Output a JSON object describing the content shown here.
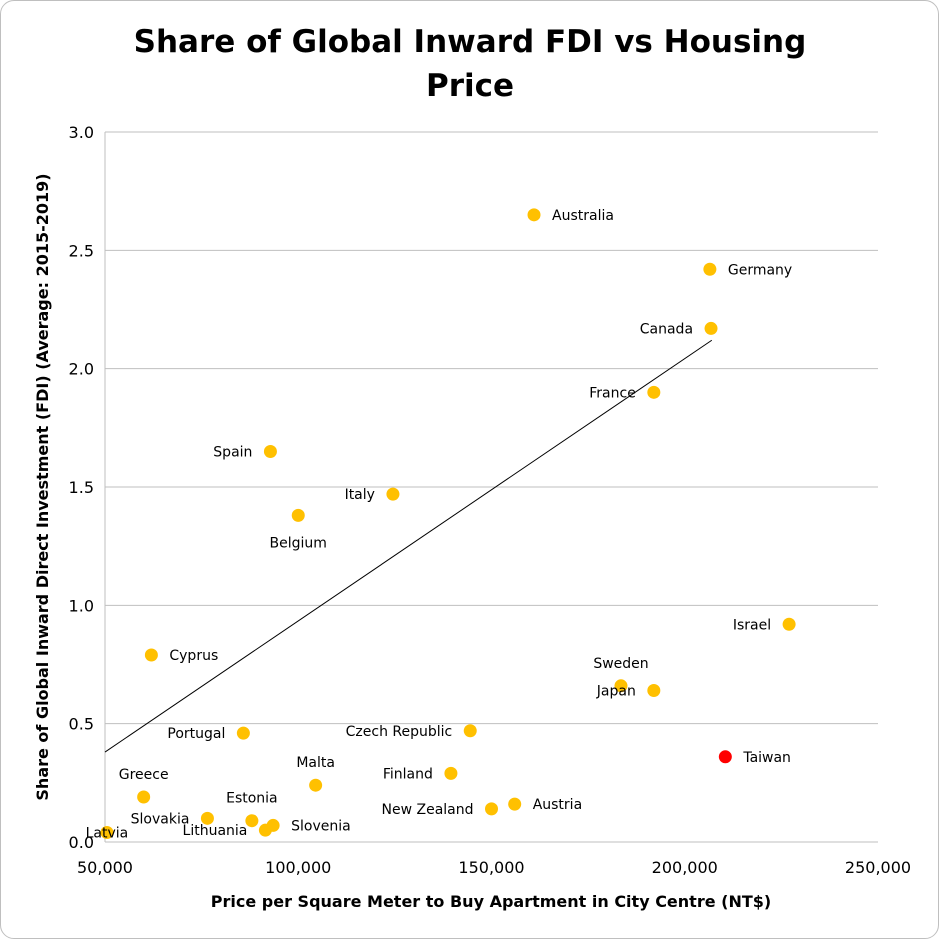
{
  "chart_data": {
    "type": "scatter",
    "title": "Share of Global Inward FDI vs Housing Price",
    "xlabel": "Price per Square Meter to Buy Apartment in City Centre (NT$)",
    "ylabel": "Share of Global Inward Direct Investment (FDI) (Average: 2015-2019)",
    "xlim": [
      50000,
      250000
    ],
    "ylim": [
      0,
      3
    ],
    "x_ticks": [
      {
        "value": 50000,
        "label": "50,000"
      },
      {
        "value": 100000,
        "label": "100,000"
      },
      {
        "value": 150000,
        "label": "150,000"
      },
      {
        "value": 200000,
        "label": "200,000"
      },
      {
        "value": 250000,
        "label": "250,000"
      }
    ],
    "y_ticks": [
      {
        "value": 0,
        "label": "0.0"
      },
      {
        "value": 0.5,
        "label": "0.5"
      },
      {
        "value": 1.0,
        "label": "1.0"
      },
      {
        "value": 1.5,
        "label": "1.5"
      },
      {
        "value": 2.0,
        "label": "2.0"
      },
      {
        "value": 2.5,
        "label": "2.5"
      },
      {
        "value": 3.0,
        "label": "3.0"
      }
    ],
    "grid": "horizontal",
    "trendline": {
      "x": [
        50000,
        207000
      ],
      "y": [
        0.38,
        2.12
      ]
    },
    "colors": {
      "point": "#FFC000",
      "highlight": "#FF0000",
      "highlight_label": "#FF0000",
      "grid": "#bfbfbf",
      "trendline": "#000000"
    },
    "points": [
      {
        "name": "Australia",
        "x": 161000,
        "y": 2.65,
        "label_side": "right"
      },
      {
        "name": "Germany",
        "x": 206500,
        "y": 2.42,
        "label_side": "right"
      },
      {
        "name": "Canada",
        "x": 206800,
        "y": 2.17,
        "label_side": "left"
      },
      {
        "name": "France",
        "x": 192000,
        "y": 1.9,
        "label_side": "left"
      },
      {
        "name": "Spain",
        "x": 92800,
        "y": 1.65,
        "label_side": "left"
      },
      {
        "name": "Italy",
        "x": 124500,
        "y": 1.47,
        "label_side": "left"
      },
      {
        "name": "Belgium",
        "x": 100000,
        "y": 1.38,
        "label_side": "below"
      },
      {
        "name": "Israel",
        "x": 227000,
        "y": 0.92,
        "label_side": "left"
      },
      {
        "name": "Cyprus",
        "x": 62000,
        "y": 0.79,
        "label_side": "right"
      },
      {
        "name": "Sweden",
        "x": 183500,
        "y": 0.66,
        "label_side": "above"
      },
      {
        "name": "Japan",
        "x": 192000,
        "y": 0.64,
        "label_side": "left"
      },
      {
        "name": "Czech Republic",
        "x": 144500,
        "y": 0.47,
        "label_side": "left"
      },
      {
        "name": "Portugal",
        "x": 85800,
        "y": 0.46,
        "label_side": "left"
      },
      {
        "name": "Taiwan",
        "x": 210500,
        "y": 0.36,
        "label_side": "right",
        "highlight": true
      },
      {
        "name": "Finland",
        "x": 139500,
        "y": 0.29,
        "label_side": "left"
      },
      {
        "name": "Malta",
        "x": 104500,
        "y": 0.24,
        "label_side": "above"
      },
      {
        "name": "Greece",
        "x": 60000,
        "y": 0.19,
        "label_side": "above"
      },
      {
        "name": "Austria",
        "x": 156000,
        "y": 0.16,
        "label_side": "right"
      },
      {
        "name": "New Zealand",
        "x": 150000,
        "y": 0.14,
        "label_side": "left"
      },
      {
        "name": "Slovakia",
        "x": 76500,
        "y": 0.1,
        "label_side": "left"
      },
      {
        "name": "Estonia",
        "x": 88000,
        "y": 0.09,
        "label_side": "above"
      },
      {
        "name": "Slovenia",
        "x": 93500,
        "y": 0.07,
        "label_side": "right"
      },
      {
        "name": "Lithuania",
        "x": 91500,
        "y": 0.05,
        "label_side": "left"
      },
      {
        "name": "Latvia",
        "x": 50500,
        "y": 0.04,
        "label_side": "center"
      }
    ]
  }
}
